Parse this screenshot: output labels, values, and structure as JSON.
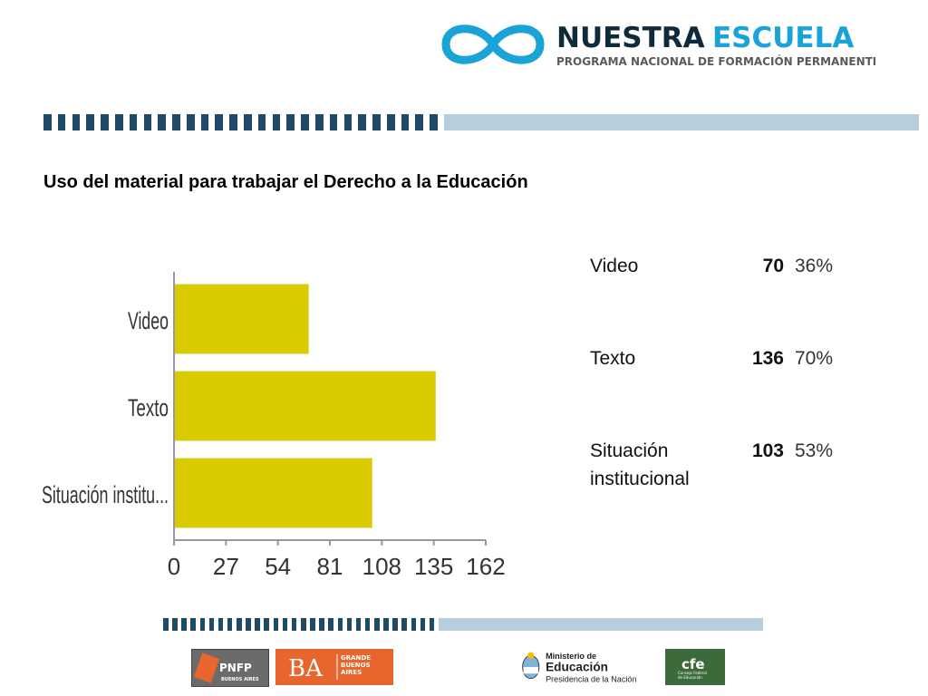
{
  "header": {
    "brand_title_a": "NUESTRA",
    "brand_title_b": "ESCUELA",
    "brand_subtitle": "PROGRAMA NACIONAL DE FORMACIÓN PERMANENTE"
  },
  "slide": {
    "title": "Uso del material para trabajar el Derecho a la Educación"
  },
  "colors": {
    "bar": "#dacb00",
    "stripe_dark": "#1f4a66",
    "stripe_light": "#b7cfdc",
    "brand_blue": "#1aa3d6",
    "brand_dark": "#0e2a3b"
  },
  "chart_data": {
    "type": "bar",
    "orientation": "horizontal",
    "categories": [
      "Video",
      "Texto",
      "Situación institu..."
    ],
    "values": [
      70,
      136,
      103
    ],
    "xlim": [
      0,
      162
    ],
    "xticks": [
      "0",
      "27",
      "54",
      "81",
      "108",
      "135",
      "162"
    ],
    "grid": false,
    "legend": "none"
  },
  "table": {
    "rows": [
      {
        "label": "Video",
        "count": "70",
        "percent": "36%"
      },
      {
        "label": "Texto",
        "count": "136",
        "percent": "70%"
      },
      {
        "label": "Situación institucional",
        "count": "103",
        "percent": "53%"
      }
    ]
  },
  "footer": {
    "pnfp": "PNFP",
    "pnfp_sub": "BUENOS AIRES",
    "ba": "BA",
    "ba_sub": "GRANDE BUENOS AIRES",
    "ministerio_1": "Ministerio de",
    "ministerio_2": "Educación",
    "ministerio_3": "Presidencia de la Nación",
    "cfe": "cfe",
    "cfe_sub": "Consejo Federal de Educación"
  }
}
